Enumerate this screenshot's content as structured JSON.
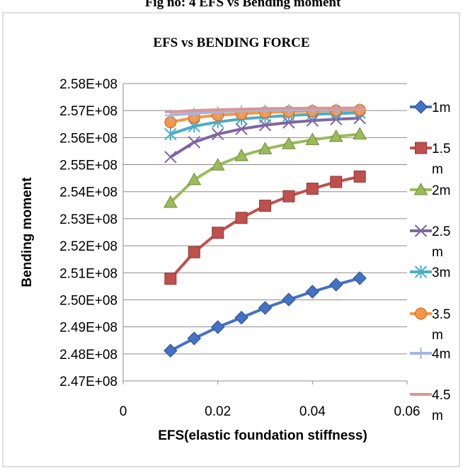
{
  "header_text": "Fig no: 4 EFS vs Bending moment",
  "chart_data": {
    "type": "line",
    "title": "EFS vs BENDING FORCE",
    "xlabel": "EFS(elastic foundation stiffness)",
    "ylabel": "Bending moment",
    "xlim": [
      0,
      0.06
    ],
    "ylim": [
      247000000,
      258000000
    ],
    "xticks": [
      0,
      0.02,
      0.04,
      0.06
    ],
    "xtick_labels": [
      "0",
      "0.02",
      "0.04",
      "0.06"
    ],
    "yticks": [
      247000000,
      248000000,
      249000000,
      250000000,
      251000000,
      252000000,
      253000000,
      254000000,
      255000000,
      256000000,
      257000000,
      258000000
    ],
    "ytick_labels": [
      "2.47E+08",
      "2.48E+08",
      "2.49E+08",
      "2.50E+08",
      "2.51E+08",
      "2.52E+08",
      "2.53E+08",
      "2.54E+08",
      "2.55E+08",
      "2.56E+08",
      "2.57E+08",
      "2.58E+08"
    ],
    "grid": "horizontal",
    "legend_position": "right",
    "x": [
      0.01,
      0.015,
      0.02,
      0.025,
      0.03,
      0.035,
      0.04,
      0.045,
      0.05
    ],
    "series": [
      {
        "name": "1m",
        "color": "#4472c4",
        "marker": "diamond",
        "values": [
          248120000,
          248570000,
          248990000,
          249340000,
          249700000,
          250010000,
          250300000,
          250560000,
          250800000
        ]
      },
      {
        "name": "1.5 m",
        "color": "#c0504d",
        "marker": "square",
        "values": [
          250780000,
          251760000,
          252480000,
          253030000,
          253480000,
          253830000,
          254110000,
          254360000,
          254560000
        ]
      },
      {
        "name": "2m",
        "color": "#9bbb59",
        "marker": "triangle",
        "values": [
          253600000,
          254440000,
          254980000,
          255330000,
          255580000,
          255770000,
          255920000,
          256040000,
          256130000
        ]
      },
      {
        "name": "2.5 m",
        "color": "#8064a2",
        "marker": "x",
        "values": [
          255280000,
          255830000,
          256130000,
          256320000,
          256460000,
          256560000,
          256630000,
          256680000,
          256720000
        ]
      },
      {
        "name": "3m",
        "color": "#4bacc6",
        "marker": "asterisk",
        "values": [
          256130000,
          256420000,
          256580000,
          256690000,
          256760000,
          256820000,
          256860000,
          256890000,
          256920000
        ]
      },
      {
        "name": "3.5 m",
        "color": "#f79646",
        "marker": "circle",
        "values": [
          256570000,
          256740000,
          256830000,
          256880000,
          256930000,
          256960000,
          256980000,
          257000000,
          257020000
        ]
      },
      {
        "name": "4m",
        "color": "#a5b4e0",
        "marker": "plus",
        "values": [
          256830000,
          256900000,
          256950000,
          256990000,
          257010000,
          257030000,
          257040000,
          257050000,
          257060000
        ]
      },
      {
        "name": "4.5 m",
        "color": "#d99694",
        "marker": "dash",
        "values": [
          256950000,
          257000000,
          257030000,
          257050000,
          257070000,
          257080000,
          257090000,
          257090000,
          257100000
        ]
      }
    ]
  }
}
